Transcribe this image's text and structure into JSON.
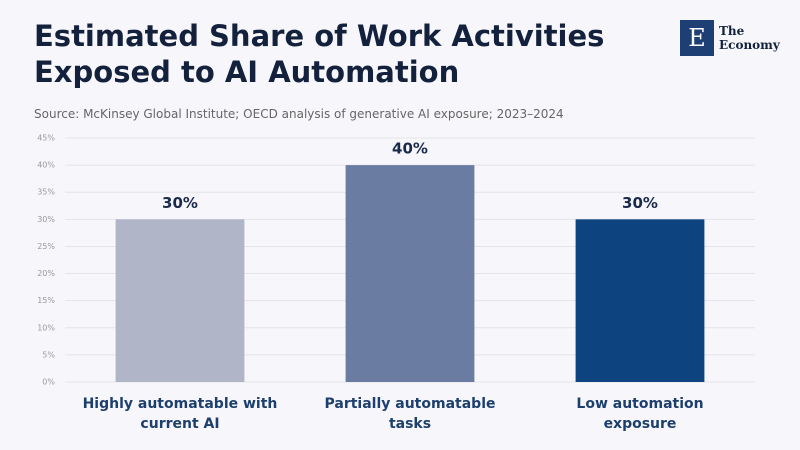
{
  "brand": {
    "mark": "E",
    "name_line1": "The",
    "name_line2": "Economy"
  },
  "chart_data": {
    "type": "bar",
    "title": "Estimated Share of Work Activities Exposed to AI Automation",
    "subtitle": "Source: McKinsey Global Institute; OECD analysis of generative AI exposure; 2023–2024",
    "categories": [
      "Highly automatable with current AI",
      "Partially automatable tasks",
      "Low automation exposure"
    ],
    "values": [
      30,
      40,
      30
    ],
    "value_labels": [
      "30%",
      "40%",
      "30%"
    ],
    "colors": [
      "#b0b5c8",
      "#6b7ca3",
      "#0d4480"
    ],
    "ylim": [
      0,
      45
    ],
    "yticks": [
      {
        "value": 0,
        "label": "0%"
      },
      {
        "value": 5,
        "label": "5%"
      },
      {
        "value": 10,
        "label": "10%"
      },
      {
        "value": 15,
        "label": "15%"
      },
      {
        "value": 20,
        "label": "20%"
      },
      {
        "value": 25,
        "label": "25%"
      },
      {
        "value": 30,
        "label": "30%"
      },
      {
        "value": 35,
        "label": "35%"
      },
      {
        "value": 40,
        "label": "40%"
      },
      {
        "value": 45,
        "label": "45%"
      }
    ],
    "grid": true
  }
}
